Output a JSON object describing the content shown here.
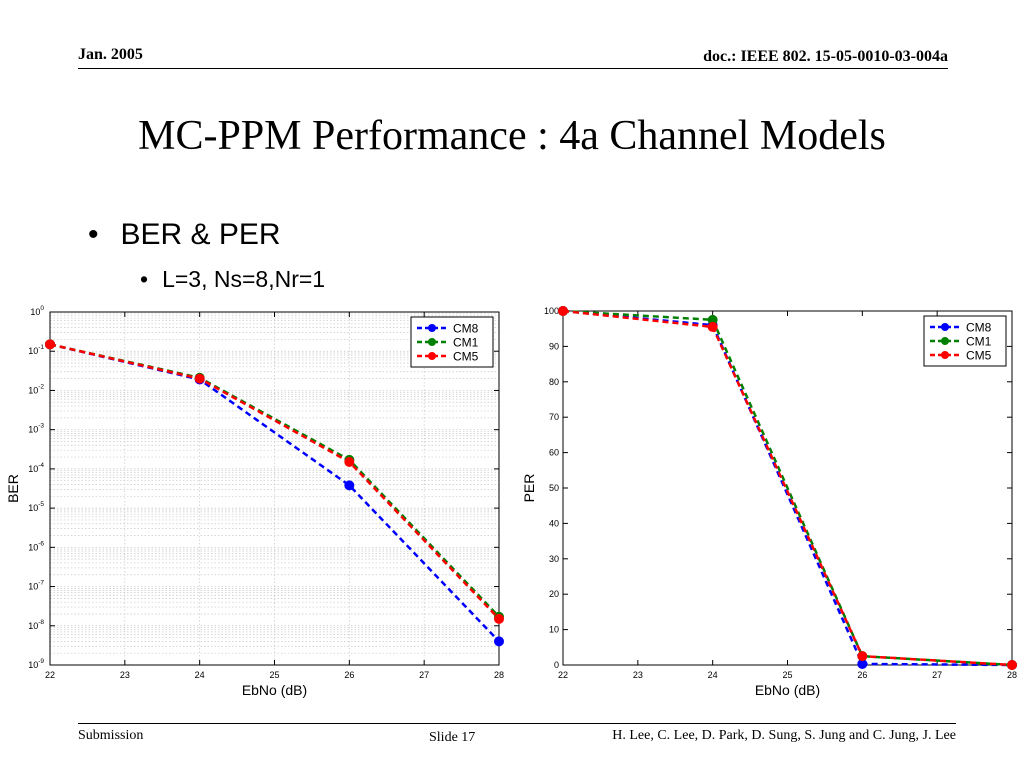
{
  "header": {
    "date": "Jan. 2005",
    "doc_id": "doc.: IEEE 802. 15-05-0010-03-004a"
  },
  "title": "MC-PPM Performance : 4a Channel Models",
  "bullets": {
    "level1": "BER & PER",
    "level2": "L=3, Ns=8,Nr=1"
  },
  "footer": {
    "submission": "Submission",
    "slide": "Slide 17",
    "authors": "H. Lee, C. Lee, D. Park, D. Sung, S. Jung and C. Jung, J. Lee"
  },
  "chart_data": [
    {
      "type": "line",
      "scale_y": "log",
      "xlabel": "EbNo (dB)",
      "ylabel": "BER",
      "xlim": [
        22,
        28
      ],
      "ylim": [
        1e-09,
        1
      ],
      "x_ticks": [
        22,
        23,
        24,
        25,
        26,
        27,
        28
      ],
      "y_tick_exponents": [
        0,
        -1,
        -2,
        -3,
        -4,
        -5,
        -6,
        -7,
        -8,
        -9
      ],
      "grid": true,
      "legend": "top-right",
      "x": [
        22,
        24,
        26,
        28
      ],
      "series": [
        {
          "name": "CM8",
          "color": "#0000ff",
          "values": [
            0.15,
            0.019,
            3.8e-05,
            4e-09
          ]
        },
        {
          "name": "CM1",
          "color": "#008000",
          "values": [
            0.15,
            0.021,
            0.00017,
            1.7e-08
          ]
        },
        {
          "name": "CM5",
          "color": "#ff0000",
          "values": [
            0.15,
            0.02,
            0.00015,
            1.5e-08
          ]
        }
      ]
    },
    {
      "type": "line",
      "scale_y": "linear",
      "xlabel": "EbNo (dB)",
      "ylabel": "PER",
      "xlim": [
        22,
        28
      ],
      "ylim": [
        0,
        100
      ],
      "x_ticks": [
        22,
        23,
        24,
        25,
        26,
        27,
        28
      ],
      "y_ticks": [
        0,
        10,
        20,
        30,
        40,
        50,
        60,
        70,
        80,
        90,
        100
      ],
      "grid": false,
      "legend": "top-right",
      "x": [
        22,
        24,
        26,
        28
      ],
      "series": [
        {
          "name": "CM8",
          "color": "#0000ff",
          "values": [
            100,
            96,
            0.3,
            0
          ]
        },
        {
          "name": "CM1",
          "color": "#008000",
          "values": [
            100,
            97.5,
            2.5,
            0
          ]
        },
        {
          "name": "CM5",
          "color": "#ff0000",
          "values": [
            100,
            95.5,
            2.5,
            0
          ]
        }
      ]
    }
  ]
}
